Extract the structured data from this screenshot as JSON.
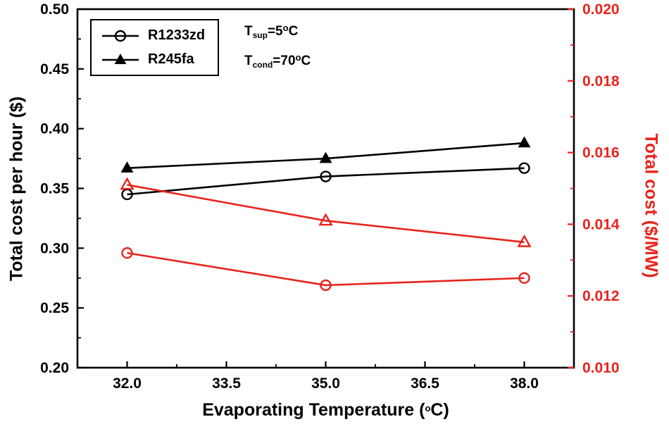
{
  "chart_data": {
    "type": "line",
    "x": [
      32,
      35,
      38
    ],
    "xlim": [
      31.25,
      38.75
    ],
    "x_ticks": [
      32.0,
      33.5,
      35.0,
      36.5,
      38.0
    ],
    "x_tick_labels": [
      "32.0",
      "33.5",
      "35.0",
      "36.5",
      "38.0"
    ],
    "xlabel_parts": {
      "pre": "Evaporating Temperature (",
      "sup": "o",
      "post": "C)"
    },
    "left_axis": {
      "label": "Total cost per hour ($)",
      "lim": [
        0.2,
        0.5
      ],
      "ticks": [
        0.2,
        0.25,
        0.3,
        0.35,
        0.4,
        0.45,
        0.5
      ],
      "tick_labels": [
        "0.20",
        "0.25",
        "0.30",
        "0.35",
        "0.40",
        "0.45",
        "0.50"
      ],
      "color": "#000000"
    },
    "right_axis": {
      "label": "Total cost ($/MW)",
      "lim": [
        0.01,
        0.02
      ],
      "ticks": [
        0.01,
        0.012,
        0.014,
        0.016,
        0.018,
        0.02
      ],
      "tick_labels": [
        "0.010",
        "0.012",
        "0.014",
        "0.016",
        "0.018",
        "0.020"
      ],
      "color": "#e8231c"
    },
    "series": [
      {
        "name": "R1233zd",
        "axis": "left",
        "color": "#000000",
        "marker": "circle-open",
        "values": [
          0.345,
          0.36,
          0.367
        ]
      },
      {
        "name": "R245fa",
        "axis": "left",
        "color": "#000000",
        "marker": "triangle-filled",
        "values": [
          0.367,
          0.375,
          0.388
        ]
      },
      {
        "name": "R1233zd",
        "axis": "right",
        "color": "#e8231c",
        "marker": "circle-open",
        "values": [
          0.0132,
          0.0123,
          0.0125
        ]
      },
      {
        "name": "R245fa",
        "axis": "right",
        "color": "#e8231c",
        "marker": "triangle-open",
        "values": [
          0.0151,
          0.0141,
          0.0135
        ]
      }
    ],
    "legend": {
      "position": "top-left",
      "entries": [
        {
          "label": "R1233zd",
          "marker": "circle-open"
        },
        {
          "label": "R245fa",
          "marker": "triangle-filled"
        }
      ]
    },
    "annotations": [
      {
        "pre": "T",
        "sub": "sup",
        "mid": "=5",
        "sup": "o",
        "post": "C"
      },
      {
        "pre": "T",
        "sub": "cond",
        "mid": "=70",
        "sup": "o",
        "post": "C"
      }
    ],
    "grid": false
  }
}
